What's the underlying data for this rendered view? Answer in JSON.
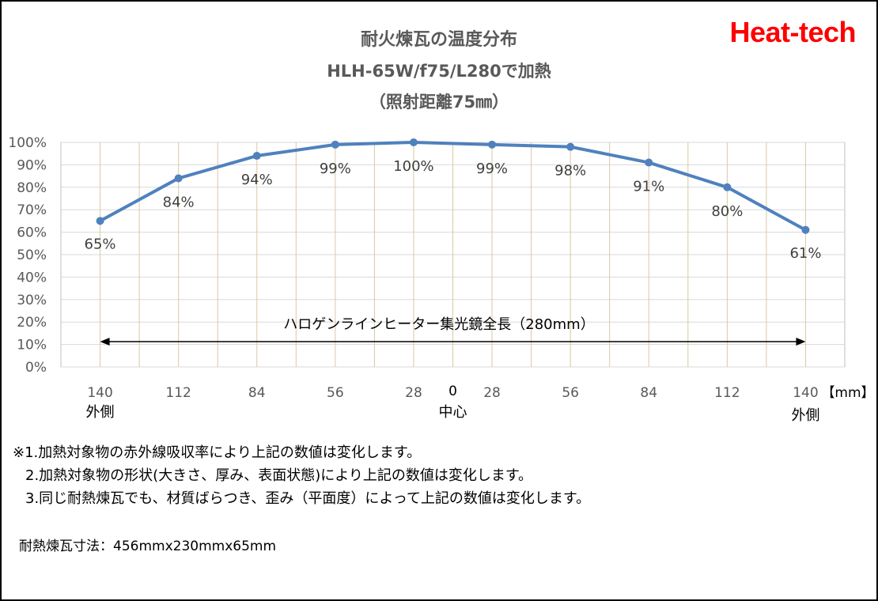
{
  "chart_data": {
    "type": "line",
    "title": "耐火煉瓦の温度分布",
    "subtitle": "HLH-65W/f75/L280で加熱",
    "subtitle2": "（照射距離75㎜）",
    "categories": [
      "140",
      "112",
      "84",
      "56",
      "28",
      "28",
      "56",
      "84",
      "112",
      "140"
    ],
    "center_tick": "0",
    "values": [
      65,
      84,
      94,
      99,
      100,
      99,
      98,
      91,
      80,
      61
    ],
    "data_labels": [
      "65%",
      "84%",
      "94%",
      "99%",
      "100%",
      "99%",
      "98%",
      "91%",
      "80%",
      "61%"
    ],
    "ylim": [
      0,
      100
    ],
    "y_ticks": [
      "0%",
      "10%",
      "20%",
      "30%",
      "40%",
      "50%",
      "60%",
      "70%",
      "80%",
      "90%",
      "100%"
    ],
    "x_unit": "【mm】",
    "x_sub_labels": {
      "left": "外側",
      "center": "中心",
      "right": "外側"
    },
    "annotation": "ハロゲンラインヒーター集光鏡全長（280mm）",
    "line_color": "#4f81bd",
    "grid": true
  },
  "brand": "Heat-tech",
  "brand_color": "#ff0000",
  "notes": [
    "※1.加熱対象物の赤外線吸収率により上記の数値は変化します。",
    "2.加熱対象物の形状(大きさ、厚み、表面状態)により上記の数値は変化します。",
    "3.同じ耐熱煉瓦でも、材質ばらつき、歪み（平面度）によって上記の数値は変化します。"
  ],
  "dimensions": "耐熱煉瓦寸法：456mmx230mmx65mm"
}
